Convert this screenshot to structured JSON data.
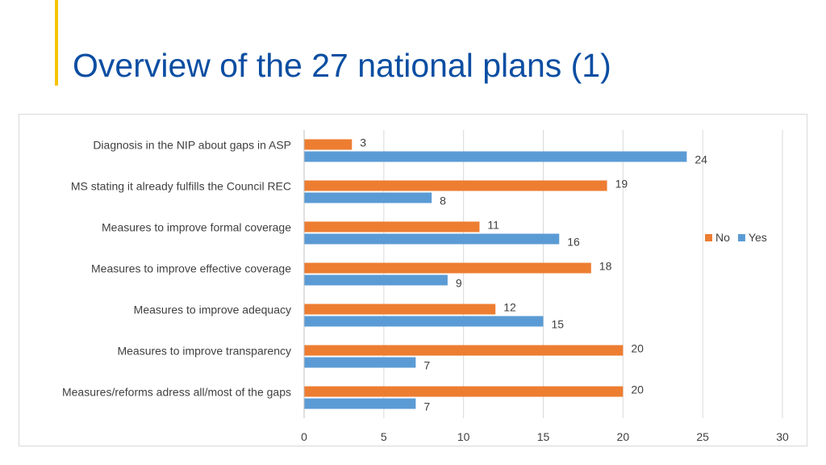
{
  "slide": {
    "title": "Overview of the 27 national plans (1)",
    "title_color": "#0b4ea2",
    "accent_color": "#f5c400"
  },
  "chart_data": {
    "type": "bar",
    "orientation": "horizontal",
    "categories": [
      "Diagnosis in the NIP about gaps in ASP",
      "MS stating it already fulfills the Council REC",
      "Measures to improve formal coverage",
      "Measures to improve effective coverage",
      "Measures to improve adequacy",
      "Measures to improve transparency",
      "Measures/reforms adress all/most of the gaps"
    ],
    "series": [
      {
        "name": "No",
        "color": "#ed7d31",
        "values": [
          3,
          19,
          11,
          18,
          12,
          20,
          20
        ]
      },
      {
        "name": "Yes",
        "color": "#5b9bd5",
        "values": [
          24,
          8,
          16,
          9,
          15,
          7,
          7
        ]
      }
    ],
    "xlim": [
      0,
      30
    ],
    "xticks": [
      "0",
      "5",
      "10",
      "15",
      "20",
      "25",
      "30"
    ],
    "grid": true,
    "legend": {
      "position": "right",
      "entries": [
        "No",
        "Yes"
      ]
    },
    "data_labels": true,
    "title": "",
    "xlabel": "",
    "ylabel": ""
  }
}
